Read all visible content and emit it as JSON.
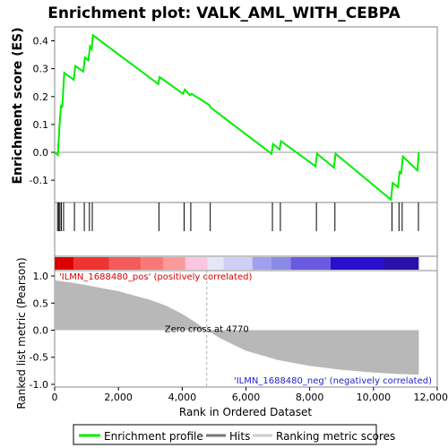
{
  "chart_data": {
    "type": "line",
    "title": "Enrichment plot: VALK_AML_WITH_CEBPA",
    "top_panel": {
      "ylabel": "Enrichment score (ES)",
      "ylim": [
        -0.18,
        0.45
      ],
      "yticks": [
        -0.1,
        0.0,
        0.1,
        0.2,
        0.3,
        0.4
      ],
      "ytick_labels": [
        "-0.1",
        "0.0",
        "0.1",
        "0.2",
        "0.3",
        "0.4"
      ],
      "series": [
        {
          "name": "Enrichment profile",
          "color": "#00ee00",
          "x": [
            0,
            100,
            130,
            160,
            200,
            240,
            300,
            600,
            650,
            900,
            950,
            1060,
            1110,
            1160,
            1200,
            3250,
            3290,
            4030,
            4080,
            4240,
            4290,
            4850,
            4900,
            6800,
            6850,
            7050,
            7100,
            8180,
            8230,
            8760,
            8810,
            10550,
            10600,
            10770,
            10820,
            10870,
            10920,
            11380,
            11420
          ],
          "y": [
            0.0,
            -0.01,
            0.05,
            0.11,
            0.17,
            0.16,
            0.285,
            0.26,
            0.31,
            0.29,
            0.34,
            0.33,
            0.38,
            0.37,
            0.42,
            0.245,
            0.27,
            0.21,
            0.225,
            0.205,
            0.21,
            0.17,
            0.16,
            -0.005,
            0.03,
            0.01,
            0.04,
            -0.05,
            -0.005,
            -0.055,
            -0.005,
            -0.17,
            -0.11,
            -0.125,
            -0.07,
            -0.075,
            -0.015,
            -0.065,
            0.0
          ]
        }
      ],
      "hits_x": [
        90,
        130,
        165,
        210,
        280,
        620,
        930,
        1090,
        1180,
        3270,
        4060,
        4270,
        4880,
        6830,
        7080,
        8210,
        8790,
        10580,
        10800,
        10900,
        11410
      ]
    },
    "bottom_panel": {
      "xlabel": "Rank in Ordered Dataset",
      "ylabel": "Ranked list metric (Pearson)",
      "xlim": [
        0,
        12000
      ],
      "ylim": [
        -1.05,
        1.1
      ],
      "xticks": [
        0,
        2000,
        4000,
        6000,
        8000,
        10000,
        12000
      ],
      "xtick_labels": [
        "0",
        "2,000",
        "4,000",
        "6,000",
        "8,000",
        "10,000",
        "12,000"
      ],
      "yticks": [
        -1.0,
        -0.5,
        0.0,
        0.5,
        1.0
      ],
      "ytick_labels": [
        "-1.0",
        "-0.5",
        "0.0",
        "0.5",
        "1.0"
      ],
      "metric_x": [
        0,
        500,
        1000,
        2000,
        3000,
        3500,
        4000,
        4400,
        4770,
        5200,
        6000,
        7000,
        8000,
        9000,
        10000,
        10800,
        11420
      ],
      "metric_y": [
        0.92,
        0.88,
        0.83,
        0.72,
        0.56,
        0.45,
        0.3,
        0.15,
        0.0,
        -0.15,
        -0.38,
        -0.55,
        -0.66,
        -0.73,
        -0.78,
        -0.81,
        -0.82
      ],
      "zero_cross_label": "Zero cross at 4770",
      "zero_cross_x": 4770,
      "pos_label": "'ILMN_1688480_pos' (positively correlated)",
      "neg_label": "'ILMN_1688480_neg' (negatively correlated)",
      "fill_color": "#b8b8b8"
    },
    "heat_band": {
      "segments": [
        {
          "from": 0,
          "to": 600,
          "color": "#dd0000"
        },
        {
          "from": 600,
          "to": 1700,
          "color": "#ee3333"
        },
        {
          "from": 1700,
          "to": 2700,
          "color": "#f55a5a"
        },
        {
          "from": 2700,
          "to": 3400,
          "color": "#f87878"
        },
        {
          "from": 3400,
          "to": 4100,
          "color": "#fa9a9a"
        },
        {
          "from": 4100,
          "to": 4800,
          "color": "#fcc6e0"
        },
        {
          "from": 4800,
          "to": 5300,
          "color": "#e6e6f8"
        },
        {
          "from": 5300,
          "to": 6200,
          "color": "#cfcff5"
        },
        {
          "from": 6200,
          "to": 6800,
          "color": "#a0a0ee"
        },
        {
          "from": 6800,
          "to": 7400,
          "color": "#8a8ae8"
        },
        {
          "from": 7400,
          "to": 8650,
          "color": "#6a5ae0"
        },
        {
          "from": 8650,
          "to": 10300,
          "color": "#2a10cc"
        },
        {
          "from": 10300,
          "to": 11420,
          "color": "#2a10aa"
        }
      ]
    },
    "legend": {
      "items": [
        {
          "label": "Enrichment profile",
          "color": "#00ee00"
        },
        {
          "label": "Hits",
          "color": "#777777"
        },
        {
          "label": "Ranking metric scores",
          "color": "#cccccc"
        }
      ],
      "placement": "bottom"
    }
  }
}
